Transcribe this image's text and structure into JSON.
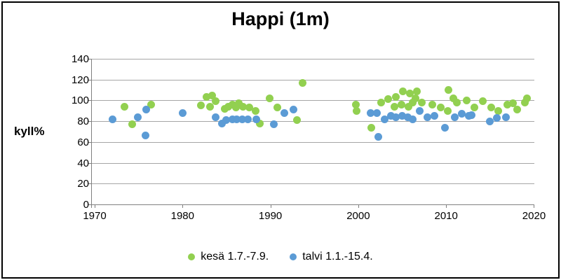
{
  "window": {
    "background_color": "#ffffff",
    "border_color": "#000000"
  },
  "chart_data": {
    "type": "scatter",
    "title": "Happi (1m)",
    "xlabel": "",
    "ylabel": "kyll%",
    "xlim": [
      1969.6,
      2020.04
    ],
    "ylim": [
      0,
      140
    ],
    "x_ticks": [
      1970,
      1980,
      1990,
      2000,
      2010,
      2020
    ],
    "y_ticks": [
      0,
      20,
      40,
      60,
      80,
      100,
      120,
      140
    ],
    "grid": "horizontal",
    "gridline_color": "#a6a6a6",
    "axis_color": "#808080",
    "legend_position": "bottom",
    "marker": "circle",
    "series": [
      {
        "id": "kesa",
        "name": "kesä 1.7.-7.9.",
        "color": "#92d050",
        "points": [
          [
            1973.4,
            94
          ],
          [
            1974.3,
            77
          ],
          [
            1976.4,
            96
          ],
          [
            1982.1,
            95
          ],
          [
            1982.7,
            103
          ],
          [
            1983.1,
            94
          ],
          [
            1983.4,
            105
          ],
          [
            1983.8,
            99
          ],
          [
            1984.8,
            92
          ],
          [
            1985.2,
            94
          ],
          [
            1985.7,
            96
          ],
          [
            1986.1,
            93
          ],
          [
            1986.4,
            97
          ],
          [
            1986.9,
            94
          ],
          [
            1987.6,
            93
          ],
          [
            1988.3,
            90
          ],
          [
            1988.8,
            78
          ],
          [
            1989.9,
            102
          ],
          [
            1990.8,
            93
          ],
          [
            1993.0,
            81
          ],
          [
            1993.7,
            117
          ],
          [
            1999.7,
            96
          ],
          [
            1999.8,
            90
          ],
          [
            2001.5,
            74
          ],
          [
            2002.6,
            98
          ],
          [
            2003.4,
            101
          ],
          [
            2004.1,
            94
          ],
          [
            2004.3,
            103
          ],
          [
            2004.9,
            96
          ],
          [
            2005.1,
            109
          ],
          [
            2005.7,
            94
          ],
          [
            2005.9,
            107
          ],
          [
            2006.2,
            98
          ],
          [
            2006.5,
            102
          ],
          [
            2006.7,
            109
          ],
          [
            2007.2,
            98
          ],
          [
            2008.4,
            96
          ],
          [
            2009.4,
            93
          ],
          [
            2010.2,
            90
          ],
          [
            2010.3,
            110
          ],
          [
            2010.8,
            102
          ],
          [
            2011.2,
            98
          ],
          [
            2012.3,
            100
          ],
          [
            2013.2,
            93
          ],
          [
            2014.2,
            99
          ],
          [
            2015.1,
            93
          ],
          [
            2015.9,
            90
          ],
          [
            2017.0,
            96
          ],
          [
            2017.6,
            97
          ],
          [
            2018.1,
            91
          ],
          [
            2019.0,
            98
          ],
          [
            2019.2,
            102
          ]
        ]
      },
      {
        "id": "talvi",
        "name": "talvi 1.1.-15.4.",
        "color": "#5b9bd5",
        "points": [
          [
            1972.0,
            82
          ],
          [
            1974.9,
            84
          ],
          [
            1975.8,
            66
          ],
          [
            1975.9,
            91
          ],
          [
            1980.0,
            88
          ],
          [
            1983.8,
            84
          ],
          [
            1984.5,
            78
          ],
          [
            1985.0,
            81
          ],
          [
            1985.7,
            82
          ],
          [
            1986.2,
            82
          ],
          [
            1986.8,
            82
          ],
          [
            1987.4,
            82
          ],
          [
            1988.4,
            82
          ],
          [
            1990.4,
            77
          ],
          [
            1991.6,
            88
          ],
          [
            1992.6,
            91
          ],
          [
            2001.4,
            88
          ],
          [
            2002.1,
            88
          ],
          [
            2002.3,
            65
          ],
          [
            2003.0,
            82
          ],
          [
            2003.7,
            85
          ],
          [
            2004.3,
            84
          ],
          [
            2005.0,
            85
          ],
          [
            2005.6,
            84
          ],
          [
            2006.2,
            82
          ],
          [
            2007.0,
            90
          ],
          [
            2007.9,
            84
          ],
          [
            2008.7,
            85
          ],
          [
            2009.9,
            74
          ],
          [
            2011.0,
            84
          ],
          [
            2011.8,
            87
          ],
          [
            2012.6,
            85
          ],
          [
            2012.9,
            86
          ],
          [
            2015.0,
            80
          ],
          [
            2015.8,
            83
          ],
          [
            2016.8,
            84
          ]
        ]
      }
    ]
  }
}
